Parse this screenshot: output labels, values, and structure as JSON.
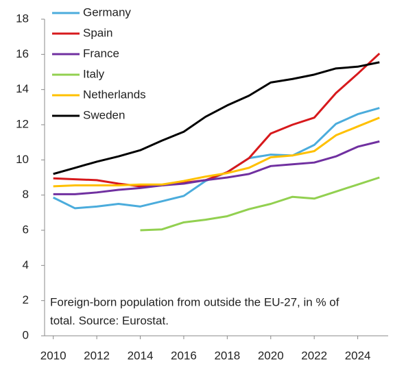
{
  "chart_data": {
    "type": "line",
    "x": [
      2010,
      2011,
      2012,
      2013,
      2014,
      2015,
      2016,
      2017,
      2018,
      2019,
      2020,
      2021,
      2022,
      2023,
      2024,
      2025
    ],
    "xlim": [
      2009.6,
      2025.4
    ],
    "xticks": [
      2010,
      2012,
      2014,
      2016,
      2018,
      2020,
      2022,
      2024
    ],
    "ylim": [
      0,
      18
    ],
    "yticks": [
      0,
      2,
      4,
      6,
      8,
      10,
      12,
      14,
      16,
      18
    ],
    "grid": false,
    "legend": "top-left",
    "annotation_lines": [
      "Foreign-born population from outside the EU-27, in % of",
      "total. Source: Eurostat."
    ],
    "series": [
      {
        "name": "Germany",
        "color": "#4bacdc",
        "values": [
          7.86,
          7.25,
          7.35,
          7.5,
          7.35,
          7.65,
          7.95,
          8.8,
          9.3,
          10.1,
          10.3,
          10.25,
          10.85,
          12.05,
          12.6,
          12.95
        ]
      },
      {
        "name": "Spain",
        "color": "#d7191c",
        "values": [
          8.95,
          8.9,
          8.85,
          8.65,
          8.5,
          8.55,
          8.7,
          8.85,
          9.3,
          10.1,
          11.5,
          12.0,
          12.4,
          13.8,
          14.9,
          16.05
        ]
      },
      {
        "name": "France",
        "color": "#7030a0",
        "values": [
          8.05,
          8.05,
          8.15,
          8.3,
          8.4,
          8.55,
          8.65,
          8.85,
          9.0,
          9.2,
          9.65,
          9.75,
          9.85,
          10.2,
          10.75,
          11.05
        ]
      },
      {
        "name": "Italy",
        "color": "#92d050",
        "values": [
          null,
          null,
          null,
          null,
          6.0,
          6.05,
          6.45,
          6.6,
          6.8,
          7.2,
          7.5,
          7.9,
          7.8,
          8.2,
          8.6,
          9.0
        ]
      },
      {
        "name": "Netherlands",
        "color": "#ffc000",
        "values": [
          8.5,
          8.55,
          8.55,
          8.55,
          8.6,
          8.6,
          8.8,
          9.05,
          9.25,
          9.55,
          10.15,
          10.25,
          10.5,
          11.4,
          11.9,
          12.4
        ]
      },
      {
        "name": "Sweden",
        "color": "#000000",
        "values": [
          9.2,
          9.55,
          9.9,
          10.2,
          10.55,
          11.1,
          11.6,
          12.45,
          13.1,
          13.65,
          14.4,
          14.6,
          14.85,
          15.2,
          15.3,
          15.55
        ]
      }
    ]
  }
}
